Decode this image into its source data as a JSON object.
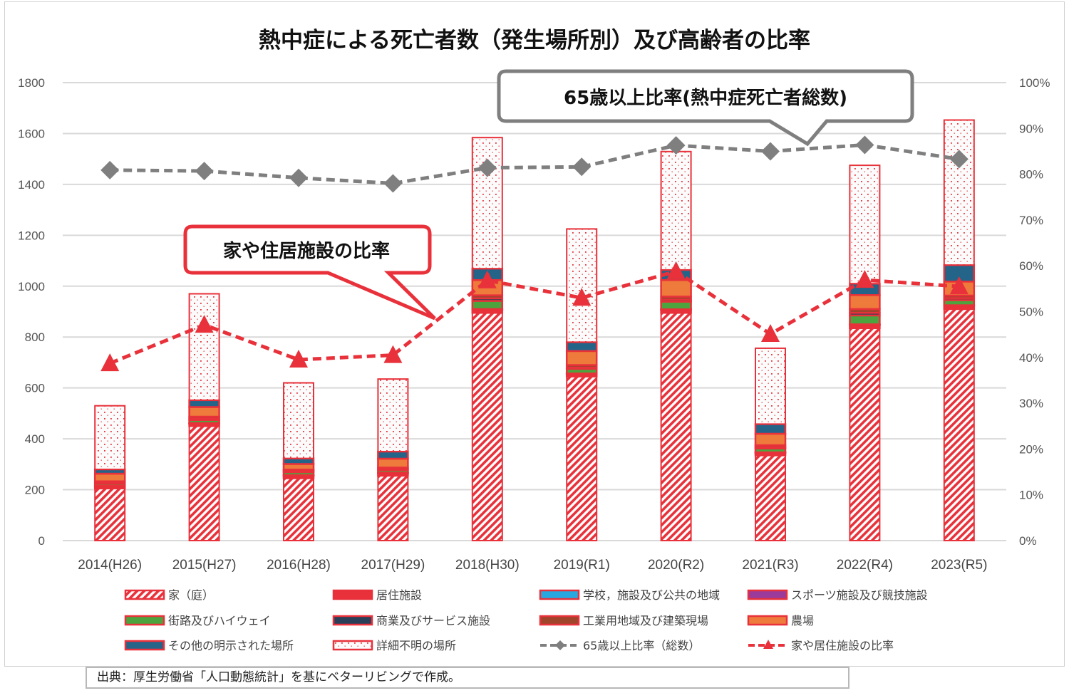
{
  "chart_data": {
    "type": "bar",
    "stacked": true,
    "title": "熱中症による死亡者数（発生場所別）及び高齢者の比率",
    "categories": [
      "2014(H26)",
      "2015(H27)",
      "2016(H28)",
      "2017(H29)",
      "2018(H30)",
      "2019(R1)",
      "2020(R2)",
      "2021(R3)",
      "2022(R4)",
      "2023(R5)"
    ],
    "ylim": [
      0,
      1800
    ],
    "yticks": [
      0,
      200,
      400,
      600,
      800,
      1000,
      1200,
      1400,
      1600,
      1800
    ],
    "y2lim": [
      0,
      100
    ],
    "y2ticks": [
      "0%",
      "10%",
      "20%",
      "30%",
      "40%",
      "50%",
      "60%",
      "70%",
      "80%",
      "90%",
      "100%"
    ],
    "grid": true,
    "legend_position": "bottom",
    "series": [
      {
        "name": "家（庭）",
        "kind": "bar",
        "color": "#e8313a",
        "pattern": "hatch",
        "values": [
          205,
          450,
          245,
          255,
          895,
          645,
          895,
          335,
          835,
          910
        ]
      },
      {
        "name": "居住施設",
        "kind": "bar",
        "color": "#e8313a",
        "pattern": "solid",
        "values": [
          8,
          10,
          10,
          10,
          12,
          10,
          12,
          10,
          12,
          12
        ]
      },
      {
        "name": "学校，施設及び公共の地域",
        "kind": "bar",
        "color": "#29a8e0",
        "pattern": "solid",
        "values": [
          1,
          1,
          1,
          1,
          2,
          1,
          1,
          1,
          2,
          2
        ]
      },
      {
        "name": "スポーツ施設及び競技施設",
        "kind": "bar",
        "color": "#9b3a9a",
        "pattern": "solid",
        "values": [
          1,
          1,
          1,
          1,
          1,
          1,
          1,
          1,
          1,
          1
        ]
      },
      {
        "name": "街路及びハイウェイ",
        "kind": "bar",
        "color": "#4da33e",
        "pattern": "solid",
        "values": [
          8,
          12,
          12,
          10,
          32,
          18,
          30,
          15,
          35,
          20
        ]
      },
      {
        "name": "商業及びサービス施設",
        "kind": "bar",
        "color": "#2a3f58",
        "pattern": "solid",
        "values": [
          5,
          5,
          5,
          5,
          10,
          5,
          8,
          5,
          10,
          8
        ]
      },
      {
        "name": "工業用地域及び建築現場",
        "kind": "bar",
        "color": "#a0442c",
        "pattern": "solid",
        "values": [
          5,
          8,
          5,
          5,
          12,
          10,
          12,
          8,
          15,
          10
        ]
      },
      {
        "name": "農場",
        "kind": "bar",
        "color": "#ee7a3c",
        "pattern": "solid",
        "values": [
          30,
          38,
          22,
          35,
          60,
          55,
          65,
          45,
          55,
          55
        ]
      },
      {
        "name": "その他の明示された場所",
        "kind": "bar",
        "color": "#256489",
        "pattern": "solid",
        "values": [
          17,
          27,
          22,
          28,
          45,
          35,
          40,
          38,
          45,
          65
        ]
      },
      {
        "name": "詳細不明の場所",
        "kind": "bar",
        "color": "#e8313a",
        "pattern": "dots",
        "values": [
          250,
          418,
          297,
          285,
          515,
          445,
          465,
          298,
          465,
          570
        ]
      },
      {
        "name": "65歳以上比率（総数）",
        "kind": "line",
        "axis": "right",
        "color": "#7f7f7f",
        "marker": "diamond",
        "values": [
          80.9,
          80.7,
          79.2,
          78.0,
          81.4,
          81.6,
          86.3,
          85.0,
          86.4,
          83.3
        ]
      },
      {
        "name": "家や居住施設の比率",
        "kind": "line",
        "axis": "right",
        "color": "#e8313a",
        "marker": "triangle",
        "values": [
          38.7,
          47.1,
          39.5,
          40.5,
          56.8,
          53.0,
          58.8,
          45.1,
          56.9,
          55.5
        ]
      }
    ],
    "annotations": [
      {
        "text": "65歳以上比率(熱中症死亡者総数)",
        "points_to": "65歳以上比率（総数）",
        "color": "#7f7f7f"
      },
      {
        "text": "家や住居施設の比率",
        "points_to": "家や居住施設の比率",
        "color": "#e8313a"
      }
    ]
  },
  "footer": {
    "source": "出典：厚生労働省「人口動態統計」を基にベターリビングで作成。"
  }
}
